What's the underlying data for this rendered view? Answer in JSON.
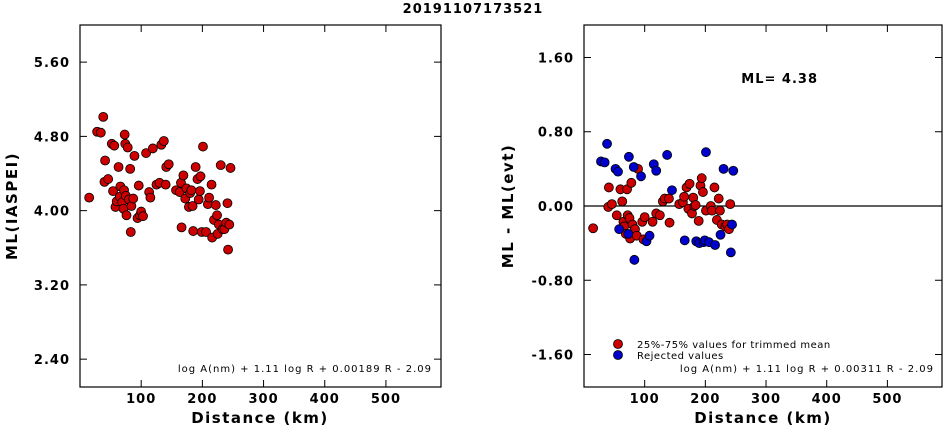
{
  "figure_title": "20191107173521",
  "chart_data": [
    {
      "type": "scatter",
      "xlabel": "Distance (km)",
      "ylabel": "ML(IASPEI)",
      "xlim": [
        0,
        590
      ],
      "ylim": [
        2.1,
        6.0
      ],
      "xticks": [
        100,
        200,
        300,
        400,
        500
      ],
      "xtick_labels": [
        "100",
        "200",
        "300",
        "400",
        "500"
      ],
      "yticks": [
        2.4,
        3.2,
        4.0,
        4.8,
        5.6
      ],
      "ytick_labels": [
        "2.40",
        "3.20",
        "4.00",
        "4.80",
        "5.60"
      ],
      "annotation": "log A(nm) + 1.11 log R + 0.00189 R - 2.09",
      "series": [
        {
          "color": "#cc0000",
          "points": [
            [
              15,
              4.14
            ],
            [
              28,
              4.85
            ],
            [
              34,
              4.84
            ],
            [
              38,
              5.01
            ],
            [
              40,
              4.31
            ],
            [
              41,
              4.54
            ],
            [
              46,
              4.34
            ],
            [
              52,
              4.72
            ],
            [
              54,
              4.21
            ],
            [
              56,
              4.7
            ],
            [
              58,
              4.04
            ],
            [
              60,
              4.1
            ],
            [
              63,
              4.47
            ],
            [
              65,
              4.15
            ],
            [
              66,
              4.26
            ],
            [
              69,
              4.09
            ],
            [
              71,
              4.02
            ],
            [
              72,
              4.22
            ],
            [
              73,
              4.82
            ],
            [
              74,
              4.72
            ],
            [
              75,
              4.16
            ],
            [
              76,
              3.95
            ],
            [
              78,
              4.68
            ],
            [
              80,
              4.12
            ],
            [
              82,
              4.45
            ],
            [
              83,
              3.77
            ],
            [
              84,
              4.05
            ],
            [
              87,
              4.13
            ],
            [
              89,
              4.59
            ],
            [
              94,
              3.92
            ],
            [
              96,
              4.27
            ],
            [
              98,
              3.95
            ],
            [
              100,
              3.99
            ],
            [
              103,
              3.94
            ],
            [
              108,
              4.62
            ],
            [
              113,
              4.2
            ],
            [
              115,
              4.14
            ],
            [
              119,
              4.67
            ],
            [
              125,
              4.28
            ],
            [
              130,
              4.3
            ],
            [
              133,
              4.71
            ],
            [
              137,
              4.75
            ],
            [
              140,
              4.28
            ],
            [
              141,
              4.47
            ],
            [
              145,
              4.5
            ],
            [
              157,
              4.22
            ],
            [
              163,
              4.2
            ],
            [
              165,
              4.3
            ],
            [
              166,
              3.82
            ],
            [
              169,
              4.38
            ],
            [
              172,
              4.13
            ],
            [
              174,
              4.24
            ],
            [
              178,
              4.04
            ],
            [
              180,
              4.19
            ],
            [
              182,
              4.22
            ],
            [
              184,
              4.05
            ],
            [
              185,
              3.78
            ],
            [
              189,
              4.47
            ],
            [
              192,
              4.34
            ],
            [
              194,
              4.12
            ],
            [
              196,
              4.21
            ],
            [
              197,
              4.37
            ],
            [
              199,
              3.77
            ],
            [
              201,
              4.69
            ],
            [
              206,
              3.77
            ],
            [
              209,
              4.07
            ],
            [
              211,
              4.14
            ],
            [
              215,
              4.28
            ],
            [
              216,
              3.71
            ],
            [
              219,
              3.9
            ],
            [
              222,
              4.06
            ],
            [
              224,
              3.95
            ],
            [
              225,
              3.75
            ],
            [
              227,
              3.85
            ],
            [
              230,
              4.49
            ],
            [
              233,
              3.8
            ],
            [
              236,
              3.8
            ],
            [
              239,
              3.87
            ],
            [
              241,
              4.08
            ],
            [
              242,
              3.58
            ],
            [
              244,
              3.85
            ],
            [
              246,
              4.46
            ]
          ]
        }
      ]
    },
    {
      "type": "scatter",
      "xlabel": "Distance (km)",
      "ylabel": "ML - ML(evt)",
      "xlim": [
        0,
        590
      ],
      "ylim": [
        -1.95,
        1.95
      ],
      "xticks": [
        100,
        200,
        300,
        400,
        500
      ],
      "xtick_labels": [
        "100",
        "200",
        "300",
        "400",
        "500"
      ],
      "yticks": [
        -1.6,
        -0.8,
        0.0,
        0.8,
        1.6
      ],
      "ytick_labels": [
        "-1.60",
        "-0.80",
        "0.00",
        "0.80",
        "1.60"
      ],
      "ml_label": "ML= 4.38",
      "zero_line": 0,
      "annotation": "log A(nm) + 1.11 log R + 0.00311 R - 2.09",
      "legend": [
        "25%-75% values for trimmed mean",
        "Rejected values"
      ],
      "series": [
        {
          "name": "25%-75% values for trimmed mean",
          "color": "#cc0000",
          "points": [
            [
              15,
              -0.24
            ],
            [
              40,
              -0.01
            ],
            [
              41,
              0.2
            ],
            [
              46,
              0.02
            ],
            [
              54,
              -0.1
            ],
            [
              60,
              0.18
            ],
            [
              63,
              0.05
            ],
            [
              65,
              -0.17
            ],
            [
              66,
              -0.22
            ],
            [
              69,
              -0.3
            ],
            [
              71,
              0.18
            ],
            [
              72,
              -0.1
            ],
            [
              75,
              -0.13
            ],
            [
              76,
              -0.35
            ],
            [
              78,
              0.25
            ],
            [
              80,
              -0.2
            ],
            [
              84,
              -0.25
            ],
            [
              87,
              -0.32
            ],
            [
              89,
              0.4
            ],
            [
              96,
              -0.17
            ],
            [
              98,
              -0.36
            ],
            [
              100,
              -0.12
            ],
            [
              113,
              -0.17
            ],
            [
              119,
              -0.08
            ],
            [
              125,
              -0.1
            ],
            [
              130,
              0.05
            ],
            [
              133,
              0.08
            ],
            [
              140,
              0.08
            ],
            [
              141,
              -0.18
            ],
            [
              157,
              0.02
            ],
            [
              163,
              0.04
            ],
            [
              165,
              0.1
            ],
            [
              169,
              0.2
            ],
            [
              172,
              -0.03
            ],
            [
              174,
              0.24
            ],
            [
              178,
              -0.08
            ],
            [
              180,
              0.09
            ],
            [
              182,
              0.0
            ],
            [
              184,
              0.01
            ],
            [
              189,
              -0.16
            ],
            [
              192,
              0.22
            ],
            [
              194,
              0.3
            ],
            [
              196,
              0.15
            ],
            [
              201,
              -0.05
            ],
            [
              209,
              0.0
            ],
            [
              211,
              -0.05
            ],
            [
              215,
              0.2
            ],
            [
              219,
              -0.15
            ],
            [
              222,
              0.08
            ],
            [
              224,
              -0.05
            ],
            [
              227,
              -0.2
            ],
            [
              233,
              -0.22
            ],
            [
              236,
              -0.2
            ],
            [
              239,
              -0.25
            ],
            [
              241,
              0.02
            ]
          ]
        },
        {
          "name": "Rejected values",
          "color": "#0000cc",
          "points": [
            [
              28,
              0.48
            ],
            [
              34,
              0.47
            ],
            [
              38,
              0.67
            ],
            [
              52,
              0.4
            ],
            [
              56,
              0.37
            ],
            [
              58,
              -0.25
            ],
            [
              73,
              -0.3
            ],
            [
              74,
              0.53
            ],
            [
              82,
              0.42
            ],
            [
              83,
              -0.58
            ],
            [
              94,
              0.32
            ],
            [
              103,
              -0.38
            ],
            [
              108,
              -0.32
            ],
            [
              115,
              0.45
            ],
            [
              119,
              0.38
            ],
            [
              137,
              0.55
            ],
            [
              145,
              0.17
            ],
            [
              166,
              -0.37
            ],
            [
              185,
              -0.38
            ],
            [
              190,
              -0.4
            ],
            [
              197,
              -0.39
            ],
            [
              199,
              -0.37
            ],
            [
              201,
              0.58
            ],
            [
              206,
              -0.39
            ],
            [
              216,
              -0.42
            ],
            [
              225,
              -0.31
            ],
            [
              230,
              0.4
            ],
            [
              242,
              -0.5
            ],
            [
              244,
              -0.2
            ],
            [
              246,
              0.38
            ]
          ]
        }
      ]
    }
  ]
}
